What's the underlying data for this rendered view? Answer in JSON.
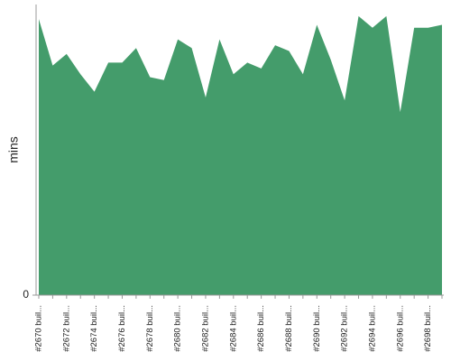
{
  "chart_data": {
    "type": "area",
    "y_label": "mins",
    "categories": [
      "#2670 buil...",
      null,
      "#2672 buil...",
      null,
      "#2674 buil...",
      null,
      "#2676 buil...",
      null,
      "#2678 buil...",
      null,
      "#2680 buil...",
      null,
      "#2682 buil...",
      null,
      "#2684 buil...",
      null,
      "#2686 buil...",
      null,
      "#2688 buil...",
      null,
      "#2690 buil...",
      null,
      "#2692 buil...",
      null,
      "#2694 buil...",
      null,
      "#2696 buil...",
      null,
      "#2698 buil...",
      null
    ],
    "values": [
      95,
      79,
      83,
      76,
      70,
      80,
      80,
      85,
      75,
      74,
      88,
      85,
      68,
      88,
      76,
      80,
      78,
      86,
      84,
      76,
      93,
      81,
      67,
      96,
      92,
      96,
      63,
      92,
      92,
      93
    ],
    "color": "#449c6b",
    "ylim": [
      0,
      100
    ],
    "yticks": [
      0
    ]
  }
}
